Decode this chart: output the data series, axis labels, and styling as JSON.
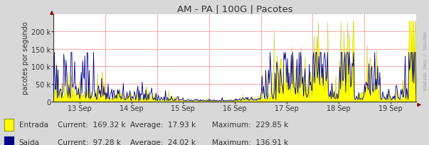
{
  "title": "AM - PA | 100G | Pacotes",
  "ylabel": "pacotes por segundo",
  "bg_color": "#d8d8d8",
  "plot_bg_color": "#ffffff",
  "grid_color": "#ff9999",
  "entrada_color": "#ffff00",
  "entrada_edge_color": "#999900",
  "saida_color": "#00008b",
  "axis_color": "#333333",
  "arrow_color": "#8b0000",
  "ylim": [
    0,
    250000
  ],
  "yticks": [
    0,
    50000,
    100000,
    150000,
    200000
  ],
  "ytick_labels": [
    "0",
    "50 k",
    "100 k",
    "150 k",
    "200 k"
  ],
  "x_day_labels": [
    "13 Sep",
    "14 Sep",
    "15 Sep",
    "16 Sep",
    "17 Sep",
    "18 Sep",
    "19 Sep"
  ],
  "legend_entrada": "Entrada",
  "legend_saida": "Saida",
  "current_entrada": "169.32 k",
  "avg_entrada": "17.93 k",
  "max_entrada": "229.85 k",
  "current_saida": "97.28 k",
  "avg_saida": "24.02 k",
  "max_saida": "136.91 k",
  "watermark": "RRDTOOL / TOBI OETIKER",
  "n_points": 500,
  "seed": 7
}
